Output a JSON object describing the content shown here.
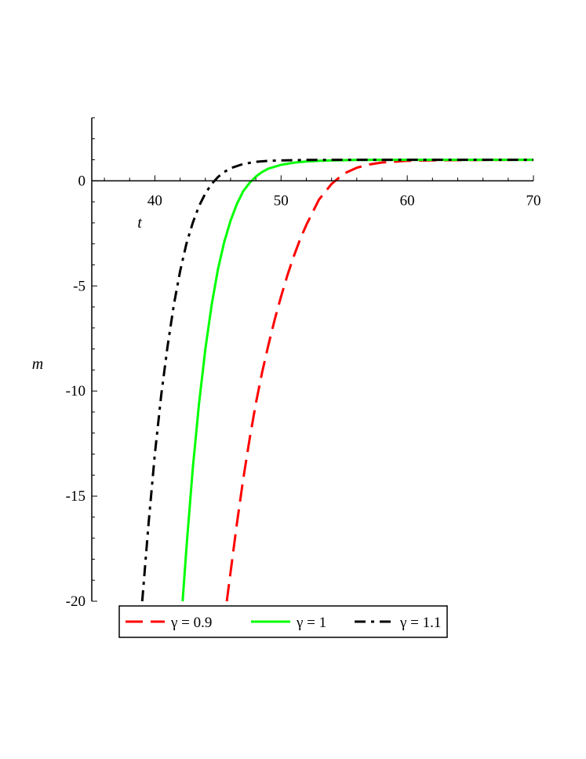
{
  "chart_data": {
    "type": "line",
    "title": "",
    "xlabel": "t",
    "ylabel": "m",
    "xlim": [
      35,
      70
    ],
    "ylim": [
      -20,
      3
    ],
    "x_ticks": [
      40,
      50,
      60,
      70
    ],
    "y_ticks": [
      0,
      -5,
      -10,
      -15,
      -20
    ],
    "x_tick_labels": [
      "40",
      "50",
      "60",
      "70"
    ],
    "y_tick_labels": [
      "0",
      "-5",
      "-10",
      "-15",
      "-20"
    ],
    "grid": false,
    "legend_position": "bottom",
    "series": [
      {
        "name": "γ = 0.9",
        "color": "#ff0000",
        "style": "dashed",
        "x": [
          45.7,
          46.5,
          47.0,
          47.5,
          48.0,
          48.5,
          49.0,
          49.5,
          50.0,
          50.5,
          51.0,
          51.5,
          52.0,
          52.5,
          53.0,
          54.0,
          55.0,
          56.0,
          57.0,
          58.0,
          60.0,
          63.0,
          66.0,
          70.0
        ],
        "y": [
          -20.0,
          -16.3,
          -14.2,
          -12.3,
          -10.6,
          -9.1,
          -7.8,
          -6.6,
          -5.5,
          -4.5,
          -3.6,
          -2.8,
          -2.1,
          -1.5,
          -0.9,
          -0.15,
          0.35,
          0.62,
          0.78,
          0.87,
          0.95,
          0.98,
          0.99,
          1.0
        ]
      },
      {
        "name": "γ = 1",
        "color": "#00ff00",
        "style": "solid",
        "x": [
          42.2,
          42.5,
          43.0,
          43.5,
          44.0,
          44.5,
          45.0,
          45.5,
          46.0,
          46.5,
          47.0,
          47.5,
          48.0,
          48.5,
          49.0,
          50.0,
          51.0,
          52.0,
          53.0,
          54.0,
          56.0,
          60.0,
          65.0,
          70.0
        ],
        "y": [
          -20.0,
          -17.5,
          -13.7,
          -10.6,
          -8.0,
          -5.9,
          -4.2,
          -2.9,
          -1.9,
          -1.1,
          -0.5,
          -0.1,
          0.2,
          0.42,
          0.58,
          0.76,
          0.86,
          0.92,
          0.95,
          0.97,
          0.99,
          1.0,
          1.0,
          1.0
        ]
      },
      {
        "name": "γ = 1.1",
        "color": "#000000",
        "style": "dashdot",
        "x": [
          39.0,
          39.5,
          40.0,
          40.5,
          41.0,
          41.5,
          42.0,
          42.5,
          43.0,
          43.5,
          44.0,
          44.5,
          45.0,
          45.5,
          46.0,
          47.0,
          48.0,
          49.0,
          50.0,
          52.0,
          55.0,
          60.0,
          65.0,
          70.0
        ],
        "y": [
          -20.0,
          -16.3,
          -13.0,
          -10.2,
          -7.9,
          -5.9,
          -4.3,
          -3.0,
          -2.0,
          -1.2,
          -0.6,
          -0.15,
          0.18,
          0.42,
          0.6,
          0.8,
          0.9,
          0.95,
          0.97,
          0.99,
          1.0,
          1.0,
          1.0,
          1.0
        ]
      }
    ]
  }
}
